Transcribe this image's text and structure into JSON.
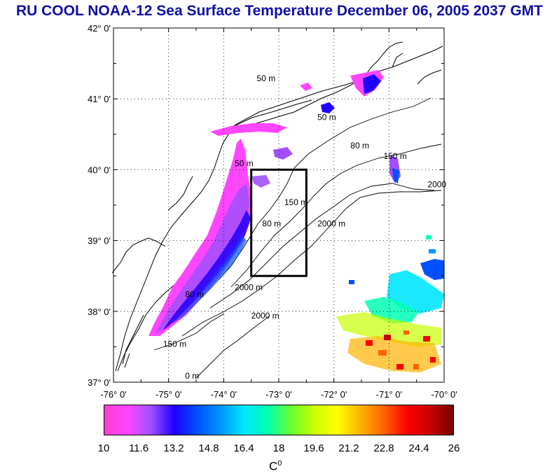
{
  "title": "RU COOL  NOAA-12 Sea Surface Temperature December 06, 2005 2037 GMT",
  "map": {
    "lat_labels": [
      "42° 0'",
      "41° 0'",
      "40° 0'",
      "39° 0'",
      "38° 0'",
      "37° 0'"
    ],
    "lat_values": [
      42,
      41,
      40,
      39,
      38,
      37
    ],
    "lon_labels": [
      "-76° 0'",
      "-75° 0'",
      "-74° 0'",
      "-73° 0'",
      "-72° 0'",
      "-71° 0'",
      "-70° 0'"
    ],
    "lon_values": [
      -76,
      -75,
      -74,
      -73,
      -72,
      -71,
      -70
    ],
    "lat_range": [
      37,
      42
    ],
    "lon_range": [
      -76,
      -70
    ],
    "contour_labels": [
      {
        "text": "50 m",
        "lon": -73.4,
        "lat": 41.25
      },
      {
        "text": "50 m",
        "lon": -72.3,
        "lat": 40.7
      },
      {
        "text": "50 m",
        "lon": -73.8,
        "lat": 40.05
      },
      {
        "text": "80 m",
        "lon": -71.7,
        "lat": 40.3
      },
      {
        "text": "80 m",
        "lon": -73.3,
        "lat": 39.2
      },
      {
        "text": "80 m",
        "lon": -74.7,
        "lat": 38.2
      },
      {
        "text": "150 m",
        "lon": -71.1,
        "lat": 40.15
      },
      {
        "text": "150 m",
        "lon": -72.9,
        "lat": 39.5
      },
      {
        "text": "150 m",
        "lon": -75.1,
        "lat": 37.5
      },
      {
        "text": "2000",
        "lon": -70.3,
        "lat": 39.75
      },
      {
        "text": "2000 m",
        "lon": -72.3,
        "lat": 39.2
      },
      {
        "text": "2000 m",
        "lon": -73.8,
        "lat": 38.3
      },
      {
        "text": "2000 m",
        "lon": -73.5,
        "lat": 37.9
      },
      {
        "text": "0 m",
        "lon": -74.7,
        "lat": 37.05
      }
    ],
    "study_box": {
      "lon_min": -73.5,
      "lon_max": -72.5,
      "lat_min": 38.5,
      "lat_max": 40.0
    }
  },
  "colorbar": {
    "min": 10,
    "max": 26,
    "tick_labels": [
      "10",
      "11.6",
      "13.2",
      "14.8",
      "16.4",
      "18",
      "19.6",
      "21.2",
      "22.8",
      "24.4",
      "26"
    ],
    "unit": "C",
    "unit_superscript": "0",
    "colors": [
      "#ff3cd2",
      "#ff46ff",
      "#a050ff",
      "#1e00ff",
      "#0050ff",
      "#0096ff",
      "#00e6ff",
      "#00ffb4",
      "#64ff32",
      "#c8ff00",
      "#ffff00",
      "#ffb400",
      "#ff6400",
      "#ff0000",
      "#c80000",
      "#780000"
    ]
  }
}
